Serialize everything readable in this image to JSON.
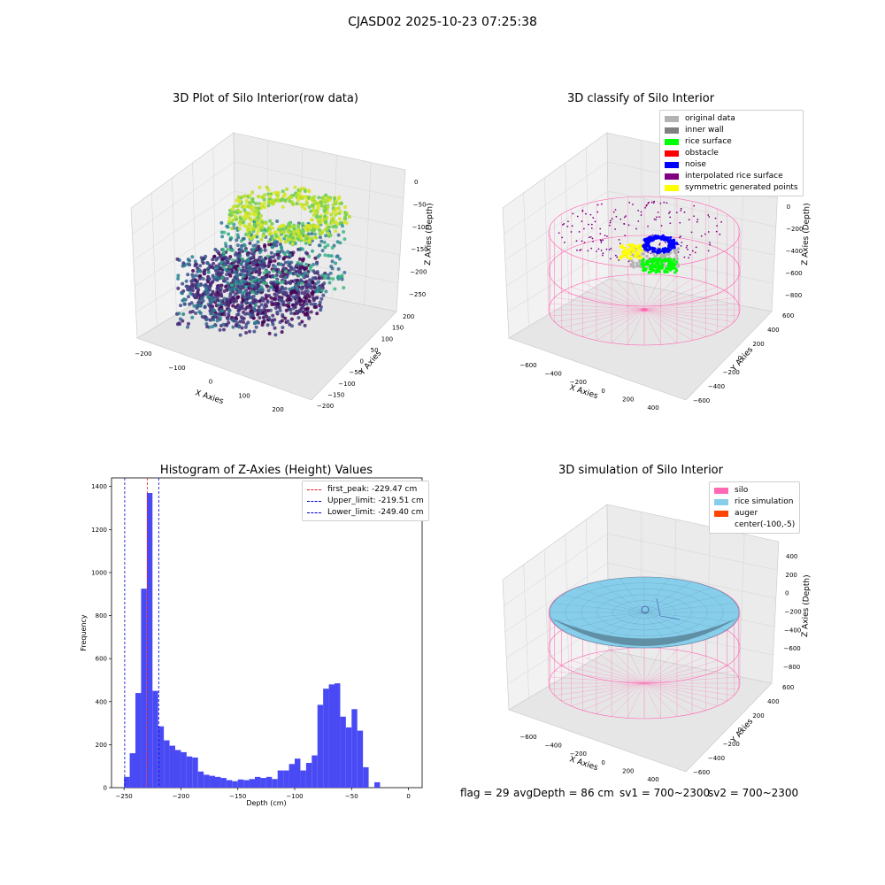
{
  "figure": {
    "suptitle": "CJASD02 2025-10-23 07:25:38",
    "footer": {
      "flag": "flag = 29",
      "avg_depth": "avgDepth = 86 cm",
      "sv1": "sv1 = 700~2300",
      "sv2": "sv2 = 700~2300"
    }
  },
  "colors": {
    "hist_bar": "#4a4af5",
    "first_peak": "#e41a1c",
    "limits": "#0000cc",
    "silo": "#ff69b4",
    "rice_simulation": "#87ceeb",
    "auger": "#ff4500",
    "original_data": "#b3b3b3",
    "inner_wall": "#808080",
    "rice_surface": "#00ff00",
    "obstacle": "#ff0000",
    "noise": "#0000ff",
    "interpolated_rice_surface": "#800080",
    "symmetric_generated_points": "#ffff00"
  },
  "chart_data": [
    {
      "type": "scatter",
      "title": "3D Plot of Silo Interior(row data)",
      "xlabel": "X Axies",
      "ylabel": "Y Axies",
      "zlabel": "Z Axies (Depth)",
      "x_ticks": [
        "-200",
        "-100",
        "0",
        "100",
        "200"
      ],
      "y_ticks": [
        "-200",
        "-150",
        "-100",
        "-50",
        "0",
        "50",
        "100",
        "150",
        "200"
      ],
      "z_ticks": [
        "0",
        "-50",
        "-100",
        "-150",
        "-200",
        "-250"
      ],
      "colormap": "viridis"
    },
    {
      "type": "scatter",
      "title": "3D classify of Silo Interior",
      "xlabel": "X Axies",
      "ylabel": "Y Axies",
      "zlabel": "Z Axies (Depth)",
      "x_ticks": [
        "-600",
        "-400",
        "-200",
        "0",
        "200",
        "400"
      ],
      "y_ticks": [
        "-600",
        "-400",
        "-200",
        "0",
        "200",
        "400",
        "600"
      ],
      "z_ticks": [
        "200",
        "0",
        "-200",
        "-400",
        "-600",
        "-800"
      ],
      "legend": [
        {
          "label": "original data",
          "color": "#b3b3b3"
        },
        {
          "label": "inner wall",
          "color": "#808080"
        },
        {
          "label": "rice surface",
          "color": "#00ff00"
        },
        {
          "label": "obstacle",
          "color": "#ff0000"
        },
        {
          "label": "noise",
          "color": "#0000ff"
        },
        {
          "label": "interpolated rice surface",
          "color": "#800080"
        },
        {
          "label": "symmetric generated points",
          "color": "#ffff00"
        }
      ]
    },
    {
      "type": "bar",
      "title": "Histogram of Z-Axies (Height) Values",
      "xlabel": "Depth (cm)",
      "ylabel": "Frequency",
      "xlim": [
        -261,
        12
      ],
      "ylim": [
        0,
        1440
      ],
      "x_ticks": [
        -250,
        -200,
        -150,
        -100,
        -50,
        0
      ],
      "y_ticks": [
        0,
        200,
        400,
        600,
        800,
        1000,
        1200,
        1400
      ],
      "bin_start": -250,
      "bin_width": 5,
      "values": [
        50,
        160,
        440,
        925,
        1370,
        450,
        285,
        220,
        195,
        175,
        165,
        145,
        140,
        75,
        60,
        55,
        50,
        45,
        35,
        30,
        38,
        35,
        40,
        50,
        45,
        50,
        40,
        80,
        80,
        110,
        135,
        80,
        115,
        150,
        385,
        460,
        480,
        485,
        330,
        280,
        365,
        265,
        95,
        0,
        25
      ],
      "lines": [
        {
          "label": "first_peak: -229.47 cm",
          "x": -229.47,
          "color": "#e41a1c"
        },
        {
          "label": "Upper_limit: -219.51 cm",
          "x": -219.51,
          "color": "#0000cc"
        },
        {
          "label": "Lower_limit: -249.40 cm",
          "x": -249.4,
          "color": "#0000cc"
        }
      ]
    },
    {
      "type": "scatter",
      "title": "3D simulation of Silo Interior",
      "xlabel": "X Axies",
      "ylabel": "Y Axies",
      "zlabel": "Z Axies (Depth)",
      "x_ticks": [
        "-600",
        "-400",
        "-200",
        "0",
        "200",
        "400"
      ],
      "y_ticks": [
        "-600",
        "-400",
        "-200",
        "0",
        "200",
        "400",
        "600"
      ],
      "z_ticks": [
        "400",
        "200",
        "0",
        "-200",
        "-400",
        "-600",
        "-800"
      ],
      "legend": [
        {
          "label": "silo",
          "color": "#ff69b4"
        },
        {
          "label": "rice simulation",
          "color": "#87ceeb"
        },
        {
          "label": "auger",
          "color": "#ff4500"
        },
        {
          "label": "center(-100,-5)",
          "color": ""
        }
      ]
    }
  ]
}
